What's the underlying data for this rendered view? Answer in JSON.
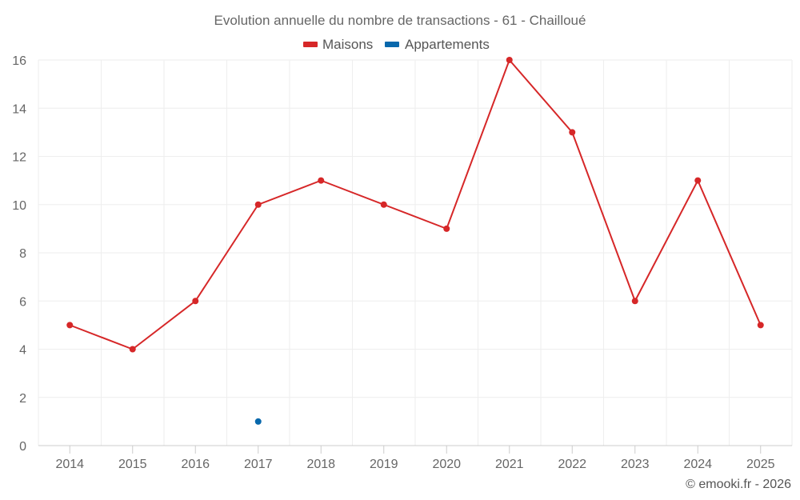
{
  "chart_data": {
    "type": "line",
    "title": "Evolution annuelle du nombre de transactions - 61 - Chailloué",
    "categories": [
      "2014",
      "2015",
      "2016",
      "2017",
      "2018",
      "2019",
      "2020",
      "2021",
      "2022",
      "2023",
      "2024",
      "2025"
    ],
    "series": [
      {
        "name": "Maisons",
        "color": "#d62728",
        "values": [
          5,
          4,
          6,
          10,
          11,
          10,
          9,
          16,
          13,
          6,
          11,
          5
        ]
      },
      {
        "name": "Appartements",
        "color": "#0868ac",
        "values": [
          null,
          null,
          null,
          1,
          null,
          null,
          null,
          null,
          null,
          null,
          null,
          null
        ]
      }
    ],
    "ylim": [
      0,
      16
    ],
    "yticks": [
      "0",
      "2",
      "4",
      "6",
      "8",
      "10",
      "12",
      "14",
      "16"
    ],
    "grid": true,
    "legend": "top-center"
  },
  "credit": "© emooki.fr - 2026"
}
